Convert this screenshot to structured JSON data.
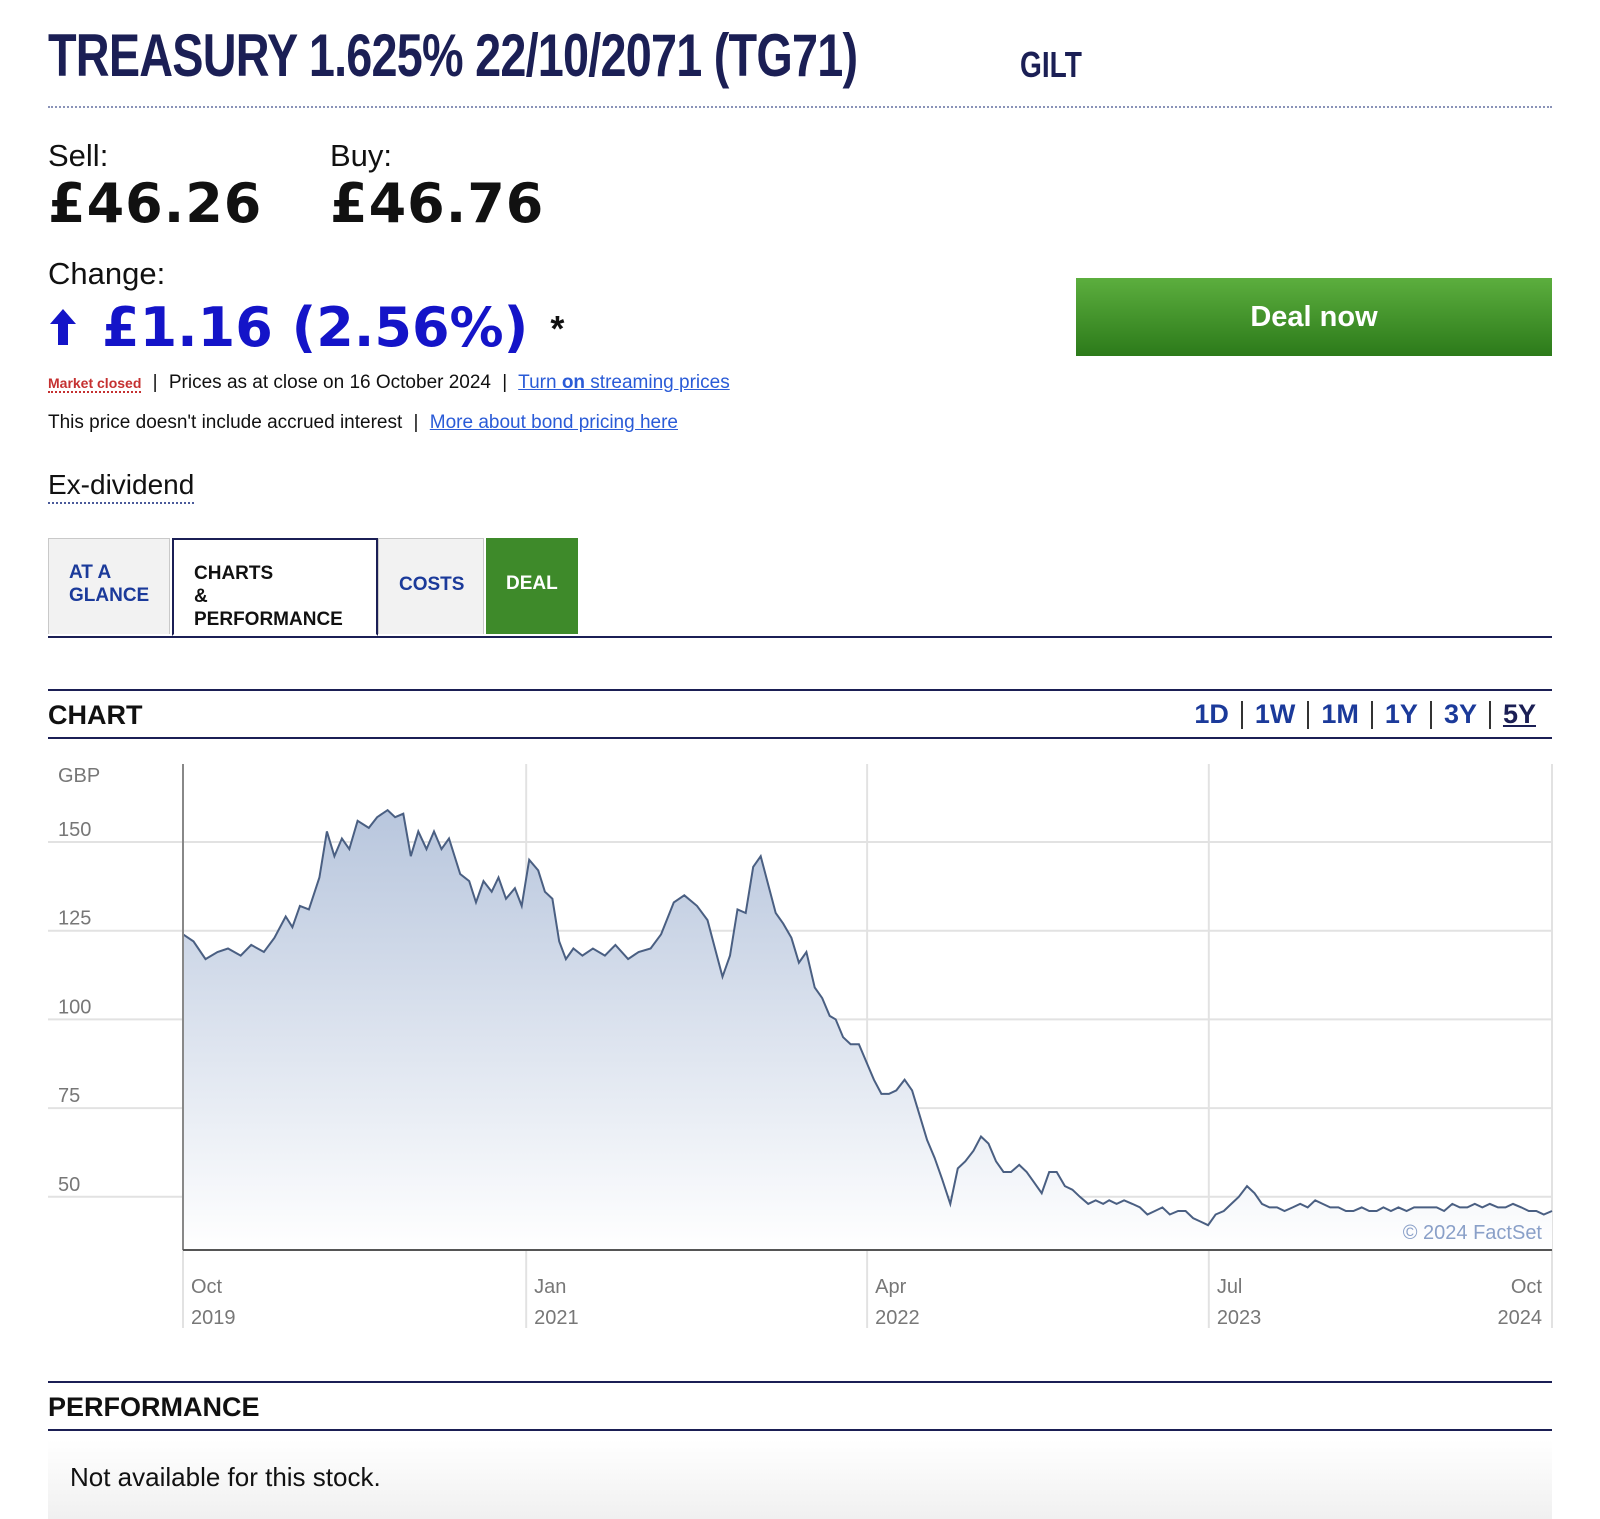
{
  "header": {
    "title": "TREASURY 1.625% 22/10/2071 (TG71)",
    "type_label": "GILT"
  },
  "prices": {
    "sell_label": "Sell:",
    "sell_value": "£46.26",
    "buy_label": "Buy:",
    "buy_value": "£46.76",
    "change_label": "Change:",
    "change_value": "£1.16 (2.56%)",
    "change_direction": "up",
    "change_color": "#1414c8",
    "asterisk": "*"
  },
  "deal_button": {
    "label": "Deal now",
    "color": "#3e8a2a"
  },
  "status": {
    "market_state": "Market closed",
    "prices_as_at": "Prices as at close on 16 October 2024",
    "streaming_link_prefix": "Turn ",
    "streaming_link_bold": "on",
    "streaming_link_suffix": " streaming prices",
    "interest_note": "This price doesn't include accrued interest",
    "bond_pricing_link": "More about bond pricing here"
  },
  "ex_dividend": "Ex-dividend",
  "tabs": [
    {
      "line1": "AT A",
      "line2": "GLANCE",
      "active": false
    },
    {
      "line1": "CHARTS",
      "line2": "& PERFORMANCE",
      "active": true
    },
    {
      "line1": "COSTS",
      "line2": "",
      "active": false
    },
    {
      "line1": "DEAL",
      "line2": "",
      "active": false
    }
  ],
  "chart_section": {
    "title": "CHART",
    "periods": [
      "1D",
      "1W",
      "1M",
      "1Y",
      "3Y",
      "5Y"
    ],
    "active_period": "5Y"
  },
  "performance_section": {
    "title": "PERFORMANCE",
    "message": "Not available for this stock."
  },
  "chart_data": {
    "type": "area",
    "title": "",
    "xlabel": "",
    "ylabel": "GBP",
    "copyright": "© 2024 FactSet",
    "y_ticks": [
      150,
      125,
      100,
      75,
      50
    ],
    "ylim": [
      35,
      172
    ],
    "x_ticks": [
      {
        "month": "Oct",
        "year": "2019"
      },
      {
        "month": "Jan",
        "year": "2021"
      },
      {
        "month": "Apr",
        "year": "2022"
      },
      {
        "month": "Jul",
        "year": "2023"
      },
      {
        "month": "Oct",
        "year": "2024"
      }
    ],
    "xlim": [
      "2019-10-16",
      "2024-10-16"
    ],
    "grid": true,
    "series": [
      {
        "color": "#4a5f82",
        "fill_top": "#b8c6dd",
        "fill_bottom": "#ffffff",
        "points": [
          [
            "2019-10-16",
            124
          ],
          [
            "2019-10-30",
            122
          ],
          [
            "2019-11-15",
            117
          ],
          [
            "2019-12-01",
            119
          ],
          [
            "2019-12-15",
            120
          ],
          [
            "2020-01-01",
            118
          ],
          [
            "2020-01-15",
            121
          ],
          [
            "2020-02-01",
            119
          ],
          [
            "2020-02-15",
            123
          ],
          [
            "2020-03-01",
            129
          ],
          [
            "2020-03-10",
            126
          ],
          [
            "2020-03-20",
            132
          ],
          [
            "2020-04-01",
            131
          ],
          [
            "2020-04-15",
            140
          ],
          [
            "2020-04-25",
            153
          ],
          [
            "2020-05-05",
            146
          ],
          [
            "2020-05-15",
            151
          ],
          [
            "2020-05-25",
            148
          ],
          [
            "2020-06-05",
            156
          ],
          [
            "2020-06-20",
            154
          ],
          [
            "2020-07-01",
            157
          ],
          [
            "2020-07-15",
            159
          ],
          [
            "2020-07-25",
            157
          ],
          [
            "2020-08-05",
            158
          ],
          [
            "2020-08-15",
            146
          ],
          [
            "2020-08-25",
            153
          ],
          [
            "2020-09-05",
            148
          ],
          [
            "2020-09-15",
            153
          ],
          [
            "2020-09-25",
            148
          ],
          [
            "2020-10-05",
            151
          ],
          [
            "2020-10-20",
            141
          ],
          [
            "2020-11-01",
            139
          ],
          [
            "2020-11-10",
            133
          ],
          [
            "2020-11-20",
            139
          ],
          [
            "2020-12-01",
            136
          ],
          [
            "2020-12-10",
            140
          ],
          [
            "2020-12-20",
            134
          ],
          [
            "2021-01-01",
            137
          ],
          [
            "2021-01-10",
            132
          ],
          [
            "2021-01-20",
            145
          ],
          [
            "2021-02-01",
            142
          ],
          [
            "2021-02-10",
            136
          ],
          [
            "2021-02-20",
            134
          ],
          [
            "2021-03-01",
            122
          ],
          [
            "2021-03-10",
            117
          ],
          [
            "2021-03-20",
            120
          ],
          [
            "2021-04-01",
            118
          ],
          [
            "2021-04-15",
            120
          ],
          [
            "2021-05-01",
            118
          ],
          [
            "2021-05-15",
            121
          ],
          [
            "2021-06-01",
            117
          ],
          [
            "2021-06-15",
            119
          ],
          [
            "2021-07-01",
            120
          ],
          [
            "2021-07-15",
            124
          ],
          [
            "2021-08-01",
            133
          ],
          [
            "2021-08-15",
            135
          ],
          [
            "2021-09-01",
            132
          ],
          [
            "2021-09-15",
            128
          ],
          [
            "2021-09-25",
            120
          ],
          [
            "2021-10-05",
            112
          ],
          [
            "2021-10-15",
            118
          ],
          [
            "2021-10-25",
            131
          ],
          [
            "2021-11-05",
            130
          ],
          [
            "2021-11-15",
            143
          ],
          [
            "2021-11-25",
            146
          ],
          [
            "2021-12-05",
            138
          ],
          [
            "2021-12-15",
            130
          ],
          [
            "2021-12-25",
            127
          ],
          [
            "2022-01-05",
            123
          ],
          [
            "2022-01-15",
            116
          ],
          [
            "2022-01-25",
            119
          ],
          [
            "2022-02-05",
            109
          ],
          [
            "2022-02-15",
            106
          ],
          [
            "2022-02-25",
            101
          ],
          [
            "2022-03-05",
            100
          ],
          [
            "2022-03-15",
            95
          ],
          [
            "2022-03-25",
            93
          ],
          [
            "2022-04-05",
            93
          ],
          [
            "2022-04-15",
            88
          ],
          [
            "2022-04-25",
            83
          ],
          [
            "2022-05-05",
            79
          ],
          [
            "2022-05-15",
            79
          ],
          [
            "2022-05-25",
            80
          ],
          [
            "2022-06-05",
            83
          ],
          [
            "2022-06-15",
            80
          ],
          [
            "2022-06-25",
            73
          ],
          [
            "2022-07-05",
            66
          ],
          [
            "2022-07-15",
            61
          ],
          [
            "2022-07-25",
            55
          ],
          [
            "2022-08-05",
            48
          ],
          [
            "2022-08-15",
            58
          ],
          [
            "2022-08-25",
            60
          ],
          [
            "2022-09-05",
            63
          ],
          [
            "2022-09-15",
            67
          ],
          [
            "2022-09-25",
            65
          ],
          [
            "2022-10-05",
            60
          ],
          [
            "2022-10-15",
            57
          ],
          [
            "2022-10-25",
            57
          ],
          [
            "2022-11-05",
            59
          ],
          [
            "2022-11-15",
            57
          ],
          [
            "2022-11-25",
            54
          ],
          [
            "2022-12-05",
            51
          ],
          [
            "2022-12-15",
            57
          ],
          [
            "2022-12-25",
            57
          ],
          [
            "2023-01-05",
            53
          ],
          [
            "2023-01-15",
            52
          ],
          [
            "2023-01-25",
            50
          ],
          [
            "2023-02-05",
            48
          ],
          [
            "2023-02-15",
            49
          ],
          [
            "2023-02-25",
            48
          ],
          [
            "2023-03-05",
            49
          ],
          [
            "2023-03-15",
            48
          ],
          [
            "2023-03-25",
            49
          ],
          [
            "2023-04-05",
            48
          ],
          [
            "2023-04-15",
            47
          ],
          [
            "2023-04-25",
            45
          ],
          [
            "2023-05-05",
            46
          ],
          [
            "2023-05-15",
            47
          ],
          [
            "2023-05-25",
            45
          ],
          [
            "2023-06-05",
            46
          ],
          [
            "2023-06-15",
            46
          ],
          [
            "2023-06-25",
            44
          ],
          [
            "2023-07-05",
            43
          ],
          [
            "2023-07-15",
            42
          ],
          [
            "2023-07-25",
            45
          ],
          [
            "2023-08-05",
            46
          ],
          [
            "2023-08-15",
            48
          ],
          [
            "2023-08-25",
            50
          ],
          [
            "2023-09-05",
            53
          ],
          [
            "2023-09-15",
            51
          ],
          [
            "2023-09-25",
            48
          ],
          [
            "2023-10-05",
            47
          ],
          [
            "2023-10-15",
            47
          ],
          [
            "2023-10-25",
            46
          ],
          [
            "2023-11-05",
            47
          ],
          [
            "2023-11-15",
            48
          ],
          [
            "2023-11-25",
            47
          ],
          [
            "2023-12-05",
            49
          ],
          [
            "2023-12-15",
            48
          ],
          [
            "2023-12-25",
            47
          ],
          [
            "2024-01-05",
            47
          ],
          [
            "2024-01-15",
            46
          ],
          [
            "2024-01-25",
            46
          ],
          [
            "2024-02-05",
            47
          ],
          [
            "2024-02-15",
            46
          ],
          [
            "2024-02-25",
            46
          ],
          [
            "2024-03-05",
            47
          ],
          [
            "2024-03-15",
            46
          ],
          [
            "2024-03-25",
            47
          ],
          [
            "2024-04-05",
            46
          ],
          [
            "2024-04-15",
            47
          ],
          [
            "2024-04-25",
            47
          ],
          [
            "2024-05-05",
            47
          ],
          [
            "2024-05-15",
            47
          ],
          [
            "2024-05-25",
            46
          ],
          [
            "2024-06-05",
            48
          ],
          [
            "2024-06-15",
            47
          ],
          [
            "2024-06-25",
            47
          ],
          [
            "2024-07-05",
            48
          ],
          [
            "2024-07-15",
            47
          ],
          [
            "2024-07-25",
            48
          ],
          [
            "2024-08-05",
            47
          ],
          [
            "2024-08-15",
            47
          ],
          [
            "2024-08-25",
            48
          ],
          [
            "2024-09-05",
            47
          ],
          [
            "2024-09-15",
            46
          ],
          [
            "2024-09-25",
            46
          ],
          [
            "2024-10-05",
            45
          ],
          [
            "2024-10-16",
            46
          ]
        ]
      }
    ]
  }
}
